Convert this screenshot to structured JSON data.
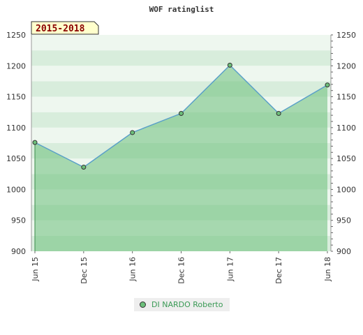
{
  "chart_data": {
    "type": "area",
    "title": "WOF ratinglist",
    "period_label": "2015-2018",
    "categories": [
      "Jun 15",
      "Dec 15",
      "Jun 16",
      "Dec 16",
      "Jun 17",
      "Dec 17",
      "Jun 18"
    ],
    "series": [
      {
        "name": "DI NARDO Roberto",
        "values": [
          1076,
          1036,
          1092,
          1123,
          1201,
          1123,
          1169
        ]
      }
    ],
    "ylim": [
      900,
      1250
    ],
    "yticks": [
      900,
      950,
      1000,
      1050,
      1100,
      1150,
      1200,
      1250
    ],
    "grid": true,
    "legend": "bottom-center",
    "colors": {
      "line": "#5aa0c8",
      "area": "#6cbf7a",
      "marker": "#6cbf7a",
      "legend_text": "#3a9a55"
    }
  }
}
